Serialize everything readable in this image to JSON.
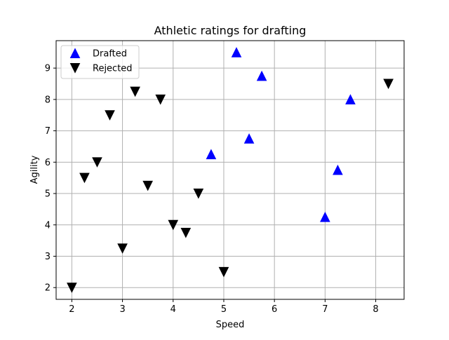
{
  "chart_data": {
    "type": "scatter",
    "title": "Athletic ratings for drafting",
    "xlabel": "Speed",
    "ylabel": "Agility",
    "xlim": [
      1.69,
      8.56
    ],
    "ylim": [
      1.625,
      9.875
    ],
    "xticks": [
      "2",
      "3",
      "4",
      "5",
      "6",
      "7",
      "8"
    ],
    "yticks": [
      "2",
      "3",
      "4",
      "5",
      "6",
      "7",
      "8",
      "9"
    ],
    "grid": true,
    "legend_position": "top-left",
    "series": [
      {
        "name": "Drafted",
        "marker": "triangle-up",
        "color": "#0000ff",
        "points": [
          {
            "x": 4.75,
            "y": 6.25
          },
          {
            "x": 5.25,
            "y": 9.5
          },
          {
            "x": 5.5,
            "y": 6.75
          },
          {
            "x": 5.75,
            "y": 8.75
          },
          {
            "x": 7.0,
            "y": 4.25
          },
          {
            "x": 7.25,
            "y": 5.75
          },
          {
            "x": 7.5,
            "y": 8.0
          }
        ]
      },
      {
        "name": "Rejected",
        "marker": "triangle-down",
        "color": "#000000",
        "points": [
          {
            "x": 2.0,
            "y": 2.0
          },
          {
            "x": 2.25,
            "y": 5.5
          },
          {
            "x": 2.5,
            "y": 6.0
          },
          {
            "x": 2.75,
            "y": 7.5
          },
          {
            "x": 3.0,
            "y": 3.25
          },
          {
            "x": 3.25,
            "y": 8.25
          },
          {
            "x": 3.5,
            "y": 5.25
          },
          {
            "x": 3.75,
            "y": 8.0
          },
          {
            "x": 4.0,
            "y": 4.0
          },
          {
            "x": 4.25,
            "y": 3.75
          },
          {
            "x": 4.5,
            "y": 5.0
          },
          {
            "x": 5.0,
            "y": 2.5
          },
          {
            "x": 8.25,
            "y": 8.5
          }
        ]
      }
    ]
  }
}
